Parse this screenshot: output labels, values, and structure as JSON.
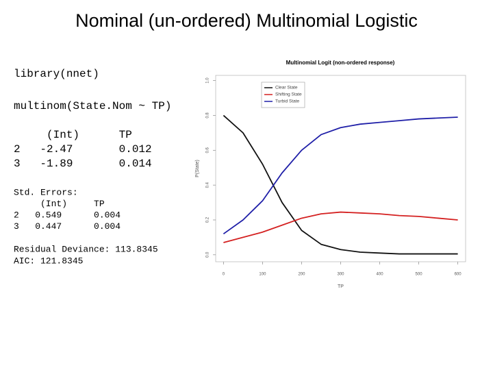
{
  "slide": {
    "title": "Nominal (un-ordered) Multinomial Logistic",
    "code": [
      "library(nnet)",
      "multinom(State.Nom ~ TP)"
    ],
    "coef_lines": [
      "     (Int)      TP",
      "2   -2.47       0.012",
      "3   -1.89       0.014"
    ],
    "se_lines": [
      "Std. Errors:",
      "     (Int)     TP",
      "2   0.549      0.004",
      "3   0.447      0.004"
    ],
    "fit_lines": [
      "Residual Deviance: 113.8345",
      "AIC: 121.8345"
    ]
  },
  "chart_data": {
    "type": "line",
    "title": "Multinomial Logit (non-ordered response)",
    "x_label": "TP",
    "y_label": "P(State)",
    "x": [
      0,
      50,
      100,
      150,
      200,
      250,
      300,
      350,
      400,
      450,
      500,
      550,
      600
    ],
    "series": [
      {
        "name": "Clear State",
        "color": "#111111",
        "values": [
          0.8,
          0.7,
          0.52,
          0.3,
          0.14,
          0.06,
          0.03,
          0.015,
          0.01,
          0.005,
          0.005,
          0.005,
          0.005
        ]
      },
      {
        "name": "Shifting State",
        "color": "#d42020",
        "values": [
          0.07,
          0.1,
          0.13,
          0.17,
          0.21,
          0.235,
          0.245,
          0.24,
          0.235,
          0.225,
          0.22,
          0.21,
          0.2
        ]
      },
      {
        "name": "Turbid State",
        "color": "#1f1fa8",
        "values": [
          0.12,
          0.2,
          0.31,
          0.47,
          0.6,
          0.69,
          0.73,
          0.75,
          0.76,
          0.77,
          0.78,
          0.785,
          0.79
        ]
      }
    ],
    "xlim": [
      -20,
      620
    ],
    "ylim": [
      -0.04,
      1.03
    ],
    "xticks": [
      0,
      100,
      200,
      300,
      400,
      500,
      600
    ],
    "yticks": [
      {
        "value": 0,
        "label": "0.0"
      },
      0.2,
      0.4,
      0.6,
      0.8,
      {
        "value": 1,
        "label": "1.0"
      }
    ],
    "legend": "top-left"
  }
}
